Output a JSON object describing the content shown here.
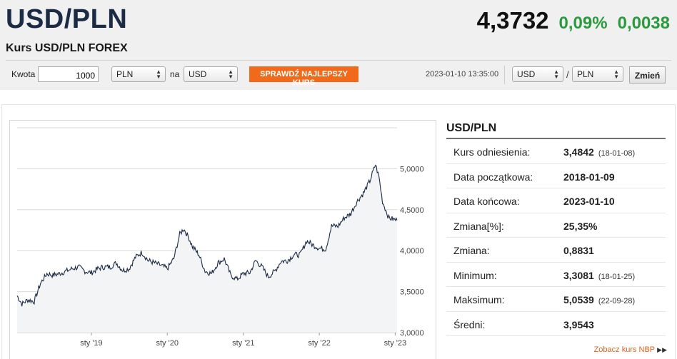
{
  "header": {
    "pair": "USD/PLN",
    "subtitle": "Kurs USD/PLN FOREX",
    "rate": "4,3732",
    "change_pct": "0,09%",
    "change_abs": "0,0038"
  },
  "toolbar": {
    "amount_label": "Kwota",
    "amount_value": "1000",
    "from_currency": "PLN",
    "to_label": "na",
    "to_currency": "USD",
    "best_rate_button": "SPRAWDŹ NAJLEPSZY KURS",
    "timestamp": "2023-01-10 13:35:00",
    "base_currency": "USD",
    "slash": "/",
    "quote_currency": "PLN",
    "change_button": "Zmień"
  },
  "chart_data": {
    "type": "line",
    "title": "",
    "xlabel": "",
    "ylabel": "",
    "x_ticks": [
      "sty '19",
      "sty '20",
      "sty '21",
      "sty '22",
      "sty '23"
    ],
    "y_ticks": [
      "3,0000",
      "3,5000",
      "4,0000",
      "4,5000",
      "5,0000"
    ],
    "ylim": [
      3.0,
      5.5
    ],
    "grid": true,
    "legend": "none",
    "line_color": "#1c2b45",
    "fill_color": "#f2f4f6",
    "series": [
      {
        "x": [
          "2018-01-09",
          "2018-02-01",
          "2018-03-01",
          "2018-04-01",
          "2018-05-01",
          "2018-06-01",
          "2018-07-01",
          "2018-08-01",
          "2018-09-01",
          "2018-10-01",
          "2018-11-01",
          "2018-12-01",
          "2019-01-01",
          "2019-02-01",
          "2019-03-01",
          "2019-04-01",
          "2019-05-01",
          "2019-06-01",
          "2019-07-01",
          "2019-08-01",
          "2019-09-01",
          "2019-10-01",
          "2019-11-01",
          "2019-12-01",
          "2020-01-01",
          "2020-02-01",
          "2020-03-01",
          "2020-03-20",
          "2020-04-15",
          "2020-05-01",
          "2020-06-01",
          "2020-07-01",
          "2020-08-01",
          "2020-09-01",
          "2020-10-01",
          "2020-11-01",
          "2020-12-01",
          "2021-01-01",
          "2021-02-01",
          "2021-03-01",
          "2021-04-01",
          "2021-05-01",
          "2021-06-01",
          "2021-07-01",
          "2021-08-01",
          "2021-09-01",
          "2021-10-01",
          "2021-11-01",
          "2021-12-01",
          "2022-01-01",
          "2022-02-01",
          "2022-03-01",
          "2022-04-01",
          "2022-05-01",
          "2022-06-01",
          "2022-07-01",
          "2022-08-01",
          "2022-09-01",
          "2022-09-28",
          "2022-10-15",
          "2022-11-01",
          "2022-12-01",
          "2023-01-10"
        ],
        "values": [
          3.45,
          3.35,
          3.4,
          3.38,
          3.6,
          3.72,
          3.7,
          3.72,
          3.75,
          3.78,
          3.8,
          3.75,
          3.73,
          3.78,
          3.8,
          3.8,
          3.85,
          3.76,
          3.78,
          3.92,
          3.98,
          3.88,
          3.85,
          3.82,
          3.78,
          3.9,
          4.2,
          4.27,
          4.15,
          4.05,
          3.95,
          3.75,
          3.72,
          3.85,
          3.9,
          3.7,
          3.65,
          3.72,
          3.73,
          3.88,
          3.8,
          3.68,
          3.75,
          3.87,
          3.88,
          3.95,
          3.95,
          4.12,
          4.07,
          4.03,
          4.02,
          4.3,
          4.3,
          4.4,
          4.45,
          4.6,
          4.7,
          4.85,
          5.05,
          4.9,
          4.6,
          4.4,
          4.37
        ]
      }
    ]
  },
  "stats": {
    "title": "USD/PLN",
    "rows": [
      {
        "label": "Kurs odniesienia:",
        "value": "3,4842",
        "date": "(18-01-08)"
      },
      {
        "label": "Data początkowa:",
        "value": "2018-01-09",
        "date": ""
      },
      {
        "label": "Data końcowa:",
        "value": "2023-01-10",
        "date": ""
      },
      {
        "label": "Zmiana[%]:",
        "value": "25,35%",
        "date": ""
      },
      {
        "label": "Zmiana:",
        "value": "0,8831",
        "date": ""
      },
      {
        "label": "Minimum:",
        "value": "3,3081",
        "date": "(18-01-25)"
      },
      {
        "label": "Maksimum:",
        "value": "5,0539",
        "date": "(22-09-28)"
      },
      {
        "label": "Średni:",
        "value": "3,9543",
        "date": ""
      }
    ]
  },
  "nbp_link": "Zobacz kurs NBP"
}
